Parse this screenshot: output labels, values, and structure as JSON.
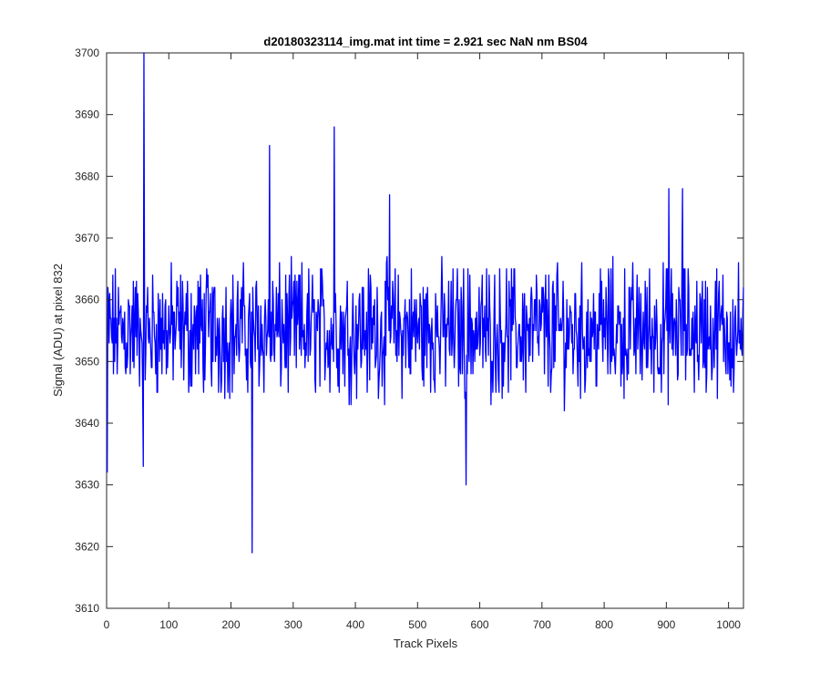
{
  "chart_data": {
    "type": "line",
    "title": "d20180323114_img.mat int time = 2.921 sec  NaN nm BS04",
    "xlabel": "Track Pixels",
    "ylabel": "Signal (ADU) at pixel 832",
    "xlim": [
      0,
      1024
    ],
    "ylim": [
      3610,
      3700
    ],
    "xticks": [
      0,
      100,
      200,
      300,
      400,
      500,
      600,
      700,
      800,
      900,
      1000
    ],
    "yticks": [
      3610,
      3620,
      3630,
      3640,
      3650,
      3660,
      3670,
      3680,
      3690,
      3700
    ],
    "grid": false,
    "legend": "none",
    "series": [
      {
        "color": "#0000ff",
        "x_start": 1,
        "x_step": 1,
        "base": 3655,
        "amplitude": 8,
        "n_points": 1024,
        "notable_points": [
          {
            "x": 1,
            "y": 3632
          },
          {
            "x": 60,
            "y": 3700
          },
          {
            "x": 59,
            "y": 3633
          },
          {
            "x": 262,
            "y": 3685
          },
          {
            "x": 234,
            "y": 3619
          },
          {
            "x": 366,
            "y": 3688
          },
          {
            "x": 578,
            "y": 3630
          },
          {
            "x": 455,
            "y": 3677
          },
          {
            "x": 904,
            "y": 3678
          },
          {
            "x": 926,
            "y": 3678
          }
        ]
      }
    ]
  }
}
